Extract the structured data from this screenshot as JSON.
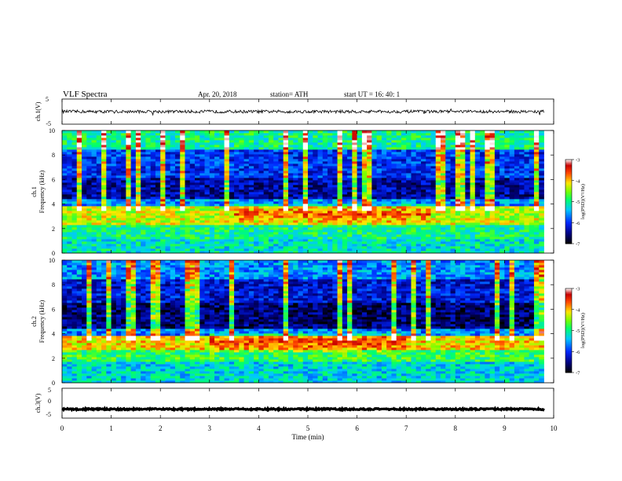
{
  "header": {
    "title": "VLF  Spectra",
    "date": "Apr. 20, 2018",
    "station": "station= ATH",
    "start": "start  UT  =   16: 40: 1"
  },
  "chart_data": [
    {
      "type": "line",
      "name": "ch1-waveform",
      "ylabel": "ch.1(V)",
      "ylim": [
        -5,
        5
      ],
      "yticks": [
        "5",
        "-5"
      ],
      "xlim": [
        0,
        10
      ],
      "x_end": 9.8,
      "level": 0,
      "amplitude": 0.6,
      "color": "#000000"
    },
    {
      "type": "heatmap",
      "name": "ch1-spectrogram",
      "ylabel_channel": "ch.1",
      "ylabel": "Frequency  (kHz)",
      "ylim": [
        0,
        10
      ],
      "yticks": [
        "0",
        "2",
        "4",
        "6",
        "8",
        "10"
      ],
      "xlim": [
        0,
        9.8
      ],
      "colorbar": {
        "label": "log(PSD)(V²/Hz)",
        "range": [
          -7,
          -3
        ],
        "ticks": [
          "-3",
          "-4",
          "-5",
          "-6",
          "-7"
        ]
      },
      "bands": [
        {
          "f_low": 0,
          "f_high": 1.2,
          "level": -5.2
        },
        {
          "f_low": 1.2,
          "f_high": 2.4,
          "level": -5.0
        },
        {
          "f_low": 2.4,
          "f_high": 3.8,
          "level": -4.3
        },
        {
          "f_low": 3.8,
          "f_high": 4.5,
          "level": -5.6
        },
        {
          "f_low": 4.5,
          "f_high": 6.2,
          "level": -6.4
        },
        {
          "f_low": 6.2,
          "f_high": 8.5,
          "level": -6.0
        },
        {
          "f_low": 8.5,
          "f_high": 10,
          "level": -5.0
        }
      ],
      "peak": {
        "f": 3.2,
        "t_start": 3.5,
        "t_end": 7.5,
        "level": -3.7
      }
    },
    {
      "type": "heatmap",
      "name": "ch2-spectrogram",
      "ylabel_channel": "ch.2",
      "ylabel": "Frequency  (kHz)",
      "ylim": [
        0,
        10
      ],
      "yticks": [
        "0",
        "2",
        "4",
        "6",
        "8",
        "10"
      ],
      "xlim": [
        0,
        9.8
      ],
      "colorbar": {
        "label": "log(PSD)(V²/Hz)",
        "range": [
          -7,
          -3
        ],
        "ticks": [
          "-3",
          "-4",
          "-5",
          "-6",
          "-7"
        ]
      },
      "bands": [
        {
          "f_low": 0,
          "f_high": 1.8,
          "level": -5.3
        },
        {
          "f_low": 1.8,
          "f_high": 2.6,
          "level": -4.8
        },
        {
          "f_low": 2.6,
          "f_high": 3.8,
          "level": -4.1
        },
        {
          "f_low": 3.8,
          "f_high": 4.4,
          "level": -5.7
        },
        {
          "f_low": 4.4,
          "f_high": 6.5,
          "level": -6.6
        },
        {
          "f_low": 6.5,
          "f_high": 8.5,
          "level": -6.2
        },
        {
          "f_low": 8.5,
          "f_high": 10,
          "level": -5.6
        }
      ],
      "peak": {
        "f": 3.3,
        "t_start": 3.0,
        "t_end": 7.0,
        "level": -3.6
      }
    },
    {
      "type": "line",
      "name": "ch3-waveform",
      "ylabel": "ch.3(V)",
      "ylim": [
        -5,
        5
      ],
      "yticks": [
        "5",
        "0",
        "-5"
      ],
      "xlim": [
        0,
        10
      ],
      "x_end": 9.8,
      "level": -2,
      "amplitude": 0.25,
      "color": "#000000"
    }
  ],
  "x_axis": {
    "label": "Time  (min)",
    "ticks": [
      "0",
      "1",
      "2",
      "3",
      "4",
      "5",
      "6",
      "7",
      "8",
      "9",
      "10"
    ],
    "range": [
      0,
      10
    ]
  }
}
